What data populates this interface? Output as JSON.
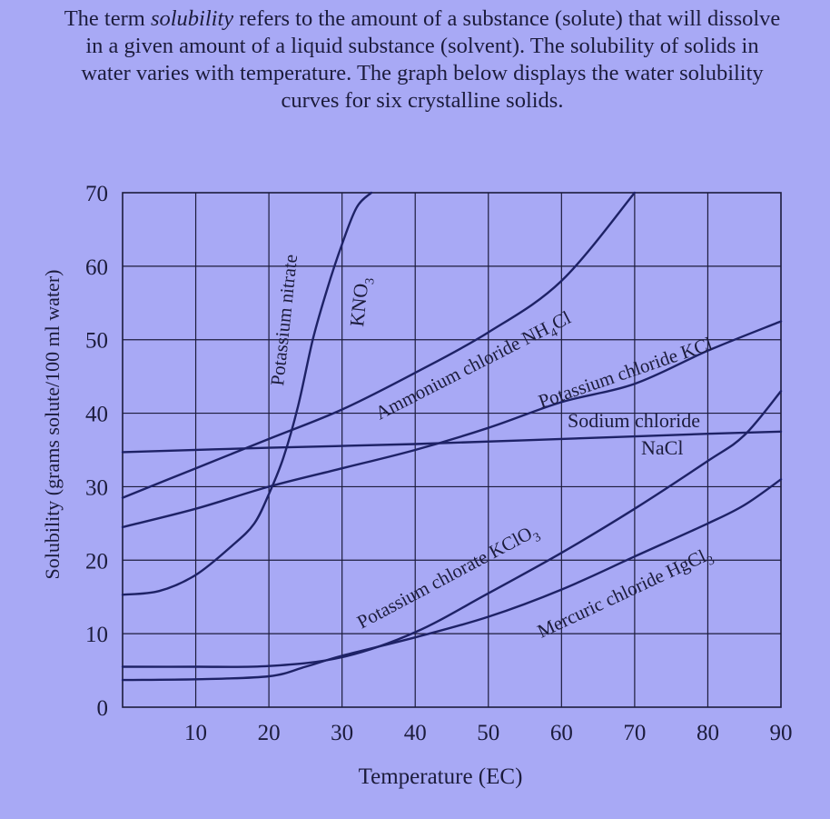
{
  "intro": {
    "part1": "The term ",
    "emphasis": "solubility",
    "part2": " refers to the amount of a substance (solute) that will dissolve in a given amount of a liquid substance (solvent). The solubility of solids in water varies with temperature. The graph below displays the water solubility curves for six crystalline solids."
  },
  "colors": {
    "background": "#a8a9f5",
    "ink": "#1c1c3c",
    "curve": "#1e2266"
  },
  "chart_data": {
    "type": "line",
    "xlabel": "Temperature (EC)",
    "ylabel": "Solubility (grams solute/100 ml water)",
    "xlim": [
      0,
      90
    ],
    "ylim": [
      0,
      70
    ],
    "xticks": [
      10,
      20,
      30,
      40,
      50,
      60,
      70,
      80,
      90
    ],
    "yticks": [
      0,
      10,
      20,
      30,
      40,
      50,
      60,
      70
    ],
    "grid": true,
    "series": [
      {
        "id": "kno3",
        "labels": [
          "Potassium nitrate",
          "KNO3"
        ],
        "x": [
          0,
          5,
          10,
          15,
          18,
          20,
          22,
          24,
          26,
          28,
          30,
          32,
          34
        ],
        "y": [
          15.3,
          15.8,
          18,
          22,
          25,
          29,
          34,
          41,
          50,
          57,
          63,
          68,
          70
        ]
      },
      {
        "id": "nh4cl",
        "labels": [
          "Ammonium chloride NH4Cl"
        ],
        "x": [
          0,
          10,
          20,
          30,
          40,
          50,
          60,
          70
        ],
        "y": [
          28.5,
          32.5,
          36.5,
          40.5,
          45.5,
          51,
          58,
          70
        ]
      },
      {
        "id": "kcl",
        "labels": [
          "Potassium chloride KCl"
        ],
        "x": [
          0,
          10,
          20,
          30,
          40,
          50,
          60,
          70,
          80,
          90
        ],
        "y": [
          24.5,
          27,
          30,
          32.5,
          35,
          38,
          41.5,
          44,
          48.5,
          52.5
        ]
      },
      {
        "id": "nacl",
        "labels": [
          "Sodium chloride",
          "NaCl"
        ],
        "x": [
          0,
          20,
          40,
          60,
          80,
          90
        ],
        "y": [
          34.7,
          35.3,
          35.8,
          36.5,
          37.2,
          37.5
        ]
      },
      {
        "id": "kclo3",
        "labels": [
          "Potassium chlorate KClO3"
        ],
        "x": [
          0,
          10,
          20,
          30,
          40,
          50,
          60,
          70,
          80,
          85,
          90
        ],
        "y": [
          5.5,
          5.5,
          5.6,
          6.8,
          10.2,
          15.5,
          21,
          27,
          33.5,
          37,
          43
        ]
      },
      {
        "id": "hgcl2",
        "labels": [
          "Mercuric chloride HgCl3"
        ],
        "x": [
          0,
          10,
          20,
          25,
          30,
          40,
          50,
          60,
          70,
          80,
          85,
          90
        ],
        "y": [
          3.7,
          3.8,
          4.2,
          5.5,
          7,
          9.5,
          12.3,
          16,
          20.5,
          25,
          27.5,
          31
        ]
      }
    ]
  }
}
